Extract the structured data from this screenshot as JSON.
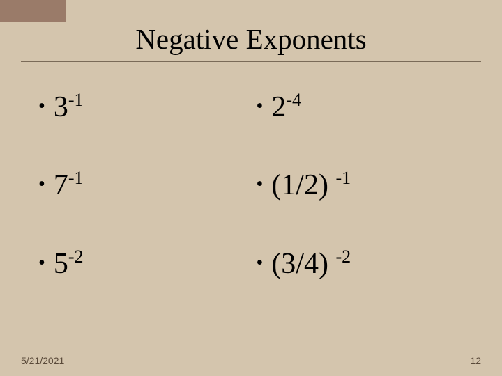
{
  "slide": {
    "title": "Negative Exponents",
    "background_color": "#d4c5ad",
    "corner_color": "#9a7b69",
    "text_color": "#000000",
    "underline_color": "#7a6b58",
    "title_fontsize": 41,
    "body_fontsize": 42,
    "footer_fontsize": 14,
    "bullets": [
      {
        "base": "3",
        "exp": "-1"
      },
      {
        "base": "2",
        "exp": "-4"
      },
      {
        "base": "7",
        "exp": "-1"
      },
      {
        "base": "(1/2) ",
        "exp": "-1"
      },
      {
        "base": "5",
        "exp": "-2"
      },
      {
        "base": "(3/4) ",
        "exp": "-2"
      }
    ],
    "grid": {
      "cols": 2,
      "rows": 3
    },
    "footer": {
      "date": "5/21/2021",
      "page": "12"
    }
  }
}
